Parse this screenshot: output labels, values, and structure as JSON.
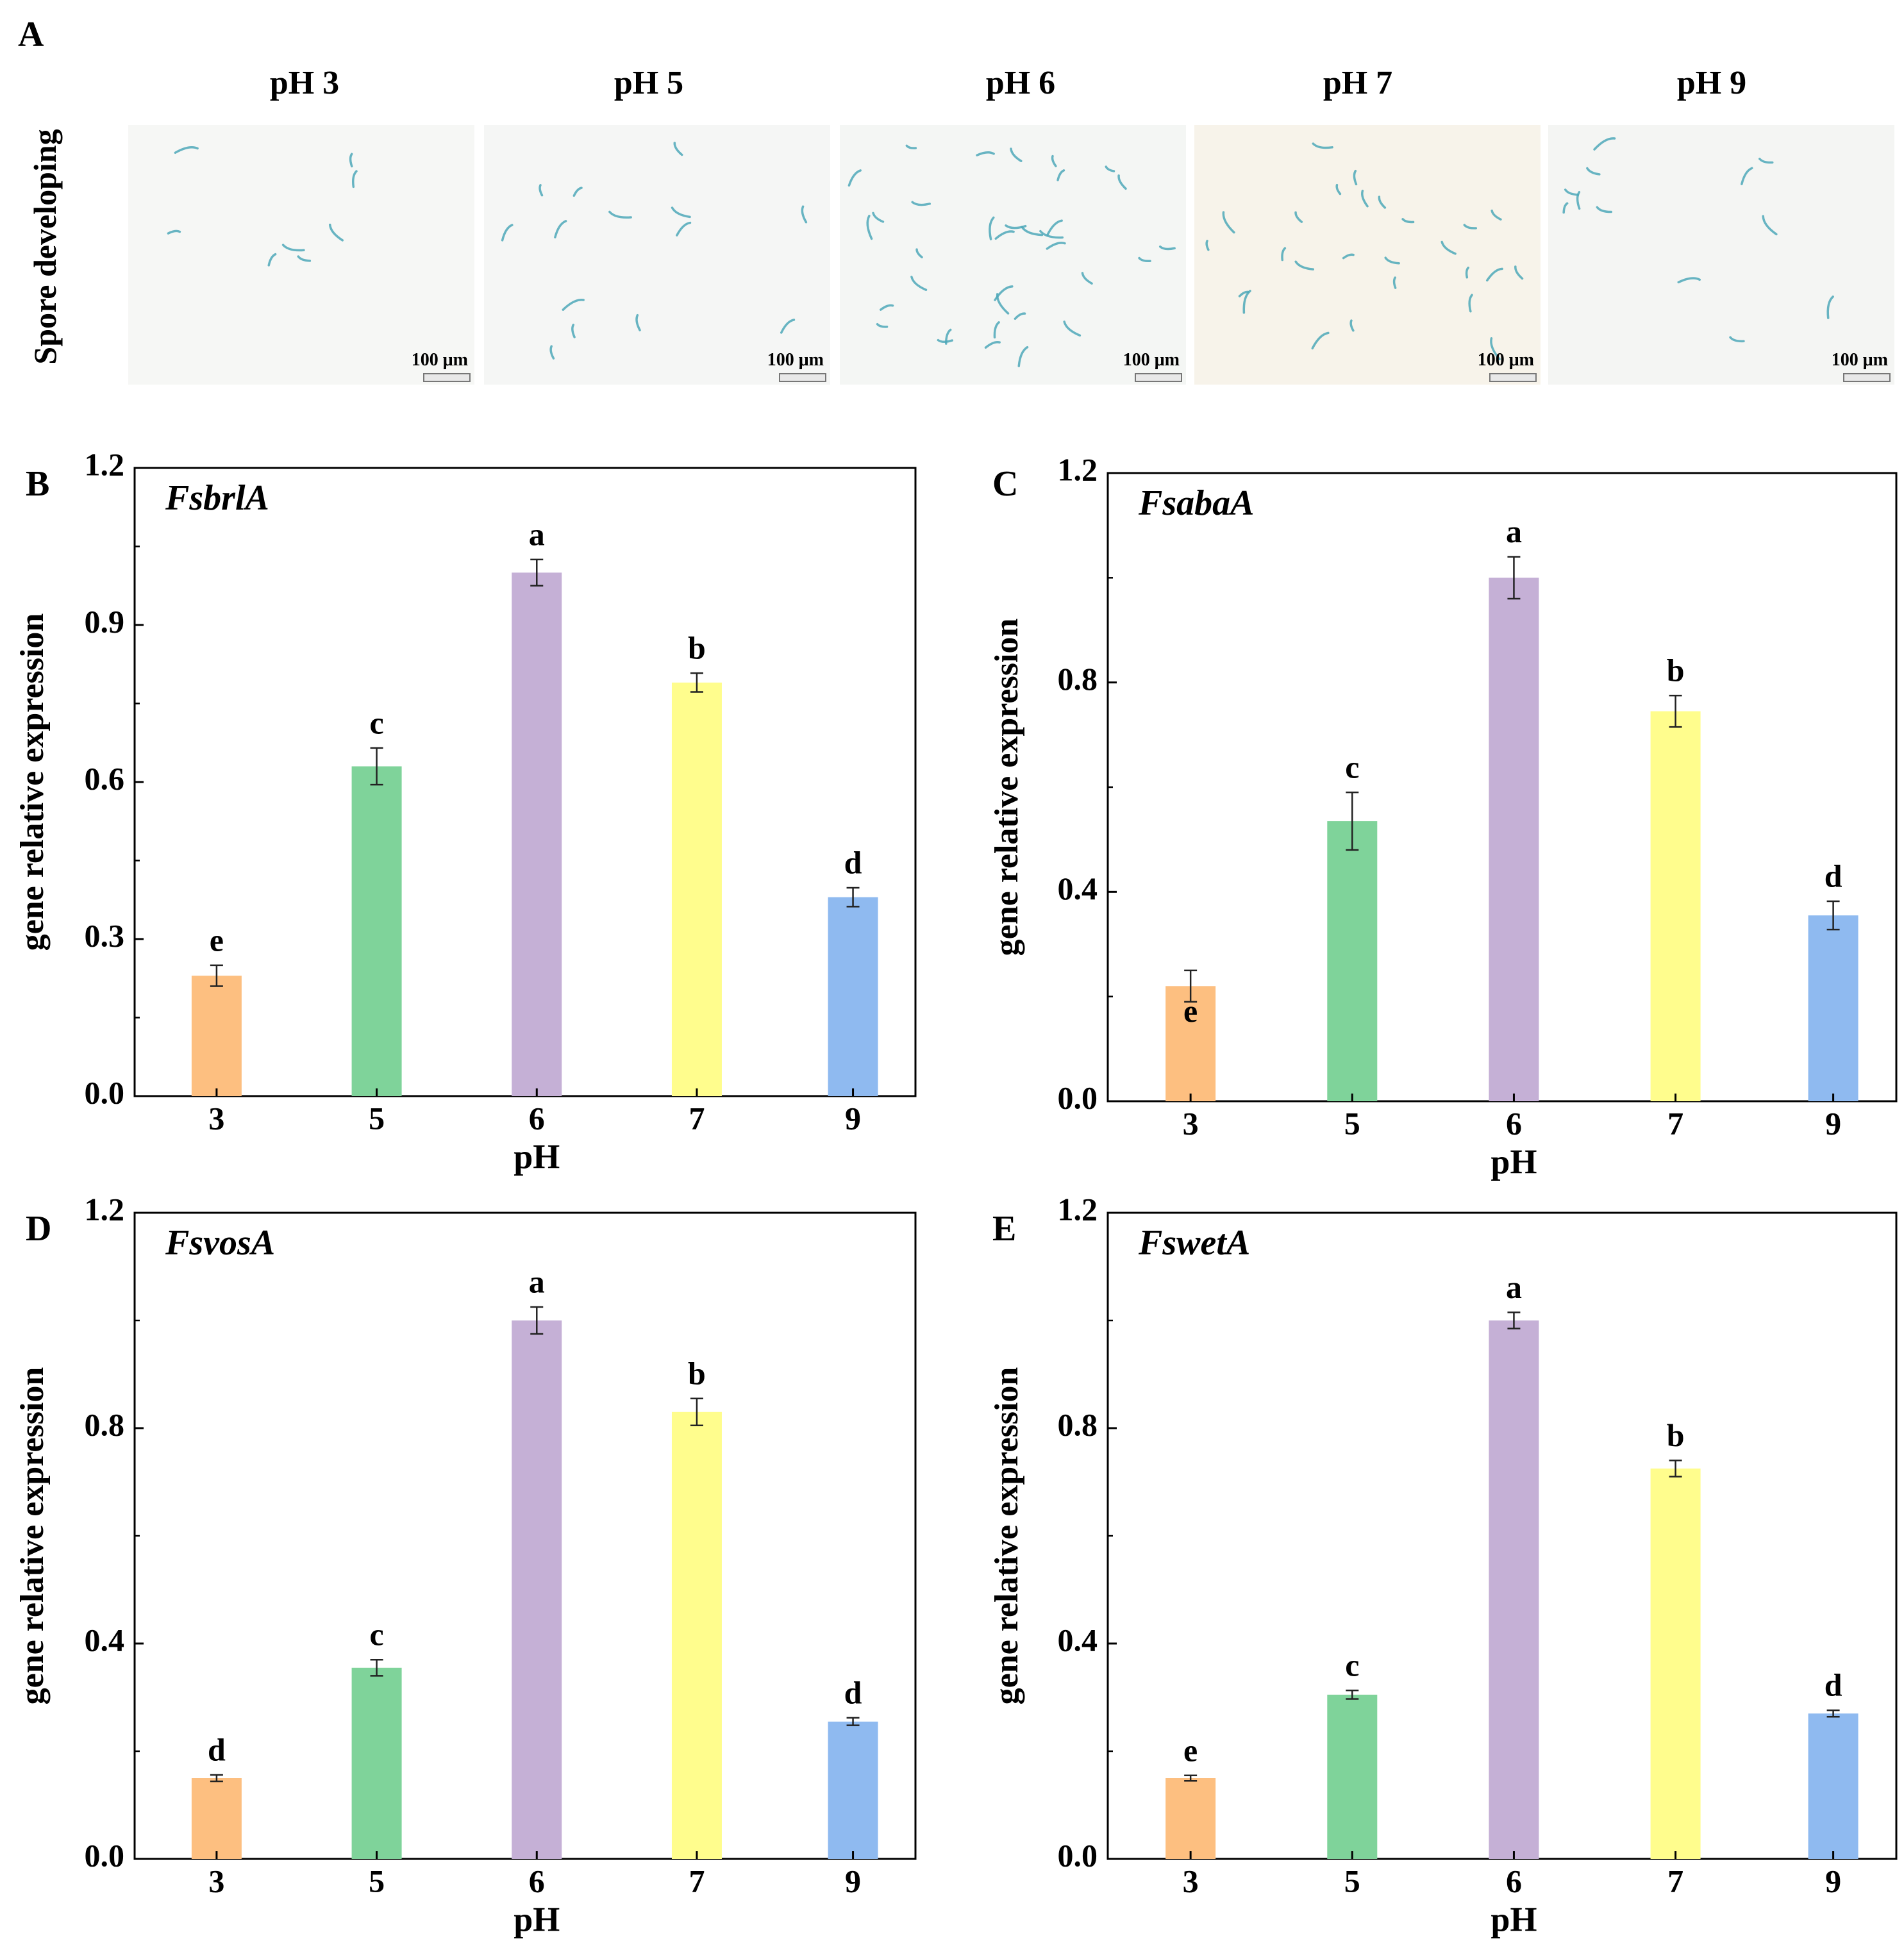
{
  "panel_a": {
    "letter": "A",
    "row_label": "Spore developing",
    "images": [
      {
        "title": "pH 3",
        "scale": "100 μm",
        "tint": "#f6f7f5",
        "spores": 8
      },
      {
        "title": "pH 5",
        "scale": "100 μm",
        "tint": "#f5f6f5",
        "spores": 14
      },
      {
        "title": "pH 6",
        "scale": "100 μm",
        "tint": "#f4f6f4",
        "spores": 34
      },
      {
        "title": "pH 7",
        "scale": "100 μm",
        "tint": "#f7f3ea",
        "spores": 26
      },
      {
        "title": "pH 9",
        "scale": "100 μm",
        "tint": "#f4f5f3",
        "spores": 12
      }
    ],
    "spore_color": "#4da8b8"
  },
  "chart_data": [
    {
      "id": "B",
      "type": "bar",
      "letter": "B",
      "title": "FsbrlA",
      "xlabel": "pH",
      "ylabel": "gene relative expression",
      "categories": [
        "3",
        "5",
        "6",
        "7",
        "9"
      ],
      "values": [
        0.23,
        0.63,
        1.0,
        0.79,
        0.38
      ],
      "errors": [
        0.02,
        0.035,
        0.025,
        0.018,
        0.018
      ],
      "letters": [
        "e",
        "c",
        "a",
        "b",
        "d"
      ],
      "colors": [
        "#fdbf80",
        "#7fd39a",
        "#c5b0d6",
        "#fffd8d",
        "#8fbaf0"
      ],
      "ylim": [
        0,
        1.2
      ],
      "yticks": [
        {
          "v": 0,
          "label": "0.0"
        },
        {
          "v": 0.3,
          "label": "0.3"
        },
        {
          "v": 0.6,
          "label": "0.6"
        },
        {
          "v": 0.9,
          "label": "0.9"
        },
        {
          "v": 1.2,
          "label": "1.2"
        }
      ]
    },
    {
      "id": "C",
      "type": "bar",
      "letter": "C",
      "title": "FsabaA",
      "xlabel": "pH",
      "ylabel": "gene relative expression",
      "categories": [
        "3",
        "5",
        "6",
        "7",
        "9"
      ],
      "values": [
        0.22,
        0.535,
        1.0,
        0.745,
        0.355
      ],
      "errors": [
        0.03,
        0.055,
        0.04,
        0.03,
        0.027
      ],
      "letters": [
        "e",
        "c",
        "a",
        "b",
        "d"
      ],
      "colors": [
        "#fdbf80",
        "#7fd39a",
        "#c5b0d6",
        "#fffd8d",
        "#8fbaf0"
      ],
      "ylim": [
        0,
        1.2
      ],
      "yticks": [
        {
          "v": 0,
          "label": "0.0"
        },
        {
          "v": 0.4,
          "label": "0.4"
        },
        {
          "v": 0.8,
          "label": "0.8"
        },
        {
          "v": 1.2,
          "label": "1.2"
        }
      ]
    },
    {
      "id": "D",
      "type": "bar",
      "letter": "D",
      "title": "FsvosA",
      "xlabel": "pH",
      "ylabel": "gene relative expression",
      "categories": [
        "3",
        "5",
        "6",
        "7",
        "9"
      ],
      "values": [
        0.15,
        0.355,
        1.0,
        0.83,
        0.255
      ],
      "errors": [
        0.006,
        0.015,
        0.025,
        0.025,
        0.007
      ],
      "letters": [
        "d",
        "c",
        "a",
        "b",
        "d"
      ],
      "colors": [
        "#fdbf80",
        "#7fd39a",
        "#c5b0d6",
        "#fffd8d",
        "#8fbaf0"
      ],
      "ylim": [
        0,
        1.2
      ],
      "yticks": [
        {
          "v": 0,
          "label": "0.0"
        },
        {
          "v": 0.4,
          "label": "0.4"
        },
        {
          "v": 0.8,
          "label": "0.8"
        },
        {
          "v": 1.2,
          "label": "1.2"
        }
      ]
    },
    {
      "id": "E",
      "type": "bar",
      "letter": "E",
      "title": "FswetA",
      "xlabel": "pH",
      "ylabel": "gene relative expression",
      "categories": [
        "3",
        "5",
        "6",
        "7",
        "9"
      ],
      "values": [
        0.15,
        0.305,
        1.0,
        0.725,
        0.27
      ],
      "errors": [
        0.005,
        0.008,
        0.015,
        0.015,
        0.006
      ],
      "letters": [
        "e",
        "c",
        "a",
        "b",
        "d"
      ],
      "colors": [
        "#fdbf80",
        "#7fd39a",
        "#c5b0d6",
        "#fffd8d",
        "#8fbaf0"
      ],
      "ylim": [
        0,
        1.2
      ],
      "yticks": [
        {
          "v": 0,
          "label": "0.0"
        },
        {
          "v": 0.4,
          "label": "0.4"
        },
        {
          "v": 0.8,
          "label": "0.8"
        },
        {
          "v": 1.2,
          "label": "1.2"
        }
      ]
    }
  ]
}
